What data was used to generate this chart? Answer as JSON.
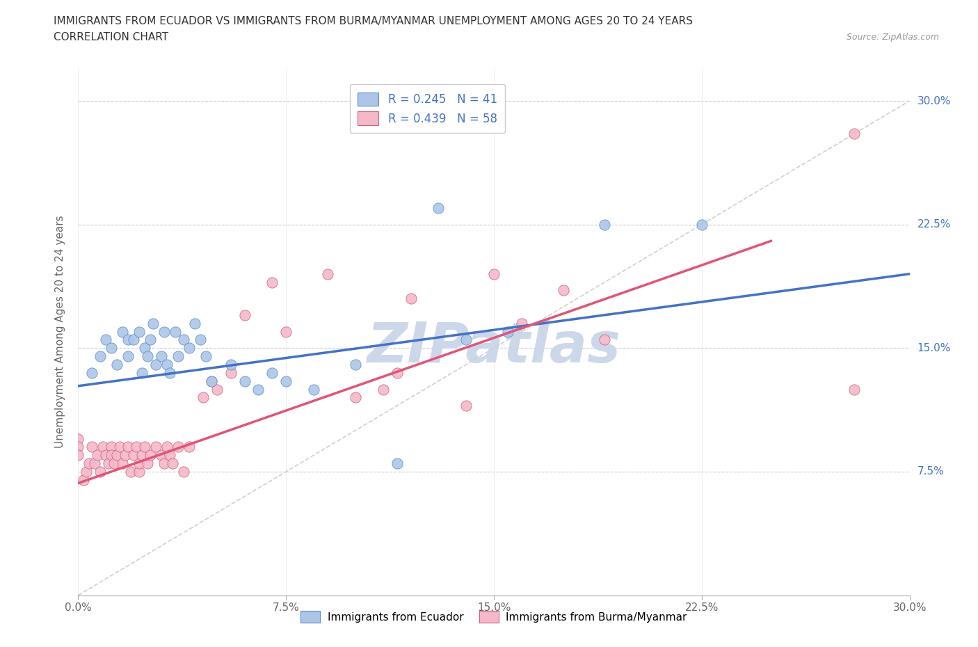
{
  "title_line1": "IMMIGRANTS FROM ECUADOR VS IMMIGRANTS FROM BURMA/MYANMAR UNEMPLOYMENT AMONG AGES 20 TO 24 YEARS",
  "title_line2": "CORRELATION CHART",
  "source_text": "Source: ZipAtlas.com",
  "ylabel": "Unemployment Among Ages 20 to 24 years",
  "xlim": [
    0.0,
    0.3
  ],
  "ylim": [
    0.0,
    0.32
  ],
  "xtick_labels": [
    "0.0%",
    "",
    "7.5%",
    "",
    "15.0%",
    "",
    "22.5%",
    "",
    "30.0%"
  ],
  "xtick_vals": [
    0.0,
    0.0375,
    0.075,
    0.1125,
    0.15,
    0.1875,
    0.225,
    0.2625,
    0.3
  ],
  "xtick_display": [
    "0.0%",
    "7.5%",
    "15.0%",
    "22.5%",
    "30.0%"
  ],
  "xtick_display_vals": [
    0.0,
    0.075,
    0.15,
    0.225,
    0.3
  ],
  "ytick_labels": [
    "7.5%",
    "15.0%",
    "22.5%",
    "30.0%"
  ],
  "ytick_vals": [
    0.075,
    0.15,
    0.225,
    0.3
  ],
  "ecuador_color": "#adc6e8",
  "ecuador_edge_color": "#5b8ec4",
  "ecuador_line_color": "#4472c4",
  "burma_color": "#f4b8c8",
  "burma_edge_color": "#d06080",
  "burma_line_color": "#e05575",
  "trend_dashed_color": "#c8c8c8",
  "watermark_color": "#ccd8ea",
  "legend_ecuador_label": "Immigrants from Ecuador",
  "legend_burma_label": "Immigrants from Burma/Myanmar",
  "R_ecuador": 0.245,
  "N_ecuador": 41,
  "R_burma": 0.439,
  "N_burma": 58,
  "ecuador_x": [
    0.005,
    0.008,
    0.01,
    0.012,
    0.014,
    0.016,
    0.018,
    0.018,
    0.02,
    0.022,
    0.023,
    0.024,
    0.025,
    0.026,
    0.027,
    0.028,
    0.03,
    0.031,
    0.032,
    0.033,
    0.035,
    0.036,
    0.038,
    0.04,
    0.042,
    0.044,
    0.046,
    0.048,
    0.055,
    0.06,
    0.065,
    0.07,
    0.075,
    0.085,
    0.1,
    0.115,
    0.13,
    0.14,
    0.155,
    0.19,
    0.225
  ],
  "ecuador_y": [
    0.135,
    0.145,
    0.155,
    0.15,
    0.14,
    0.16,
    0.155,
    0.145,
    0.155,
    0.16,
    0.135,
    0.15,
    0.145,
    0.155,
    0.165,
    0.14,
    0.145,
    0.16,
    0.14,
    0.135,
    0.16,
    0.145,
    0.155,
    0.15,
    0.165,
    0.155,
    0.145,
    0.13,
    0.14,
    0.13,
    0.125,
    0.135,
    0.13,
    0.125,
    0.14,
    0.08,
    0.235,
    0.155,
    0.16,
    0.225,
    0.225
  ],
  "burma_x": [
    0.0,
    0.0,
    0.0,
    0.002,
    0.003,
    0.004,
    0.005,
    0.006,
    0.007,
    0.008,
    0.009,
    0.01,
    0.011,
    0.012,
    0.012,
    0.013,
    0.014,
    0.015,
    0.016,
    0.017,
    0.018,
    0.019,
    0.02,
    0.021,
    0.022,
    0.022,
    0.023,
    0.024,
    0.025,
    0.026,
    0.028,
    0.03,
    0.031,
    0.032,
    0.033,
    0.034,
    0.036,
    0.038,
    0.04,
    0.045,
    0.048,
    0.05,
    0.055,
    0.06,
    0.07,
    0.075,
    0.09,
    0.1,
    0.11,
    0.115,
    0.12,
    0.14,
    0.15,
    0.16,
    0.175,
    0.19,
    0.28,
    0.28
  ],
  "burma_y": [
    0.095,
    0.09,
    0.085,
    0.07,
    0.075,
    0.08,
    0.09,
    0.08,
    0.085,
    0.075,
    0.09,
    0.085,
    0.08,
    0.09,
    0.085,
    0.08,
    0.085,
    0.09,
    0.08,
    0.085,
    0.09,
    0.075,
    0.085,
    0.09,
    0.075,
    0.08,
    0.085,
    0.09,
    0.08,
    0.085,
    0.09,
    0.085,
    0.08,
    0.09,
    0.085,
    0.08,
    0.09,
    0.075,
    0.09,
    0.12,
    0.13,
    0.125,
    0.135,
    0.17,
    0.19,
    0.16,
    0.195,
    0.12,
    0.125,
    0.135,
    0.18,
    0.115,
    0.195,
    0.165,
    0.185,
    0.155,
    0.125,
    0.28
  ],
  "ec_trend_x0": 0.0,
  "ec_trend_y0": 0.127,
  "ec_trend_x1": 0.3,
  "ec_trend_y1": 0.195,
  "bm_trend_x0": 0.0,
  "bm_trend_y0": 0.068,
  "bm_trend_x1": 0.25,
  "bm_trend_y1": 0.215
}
